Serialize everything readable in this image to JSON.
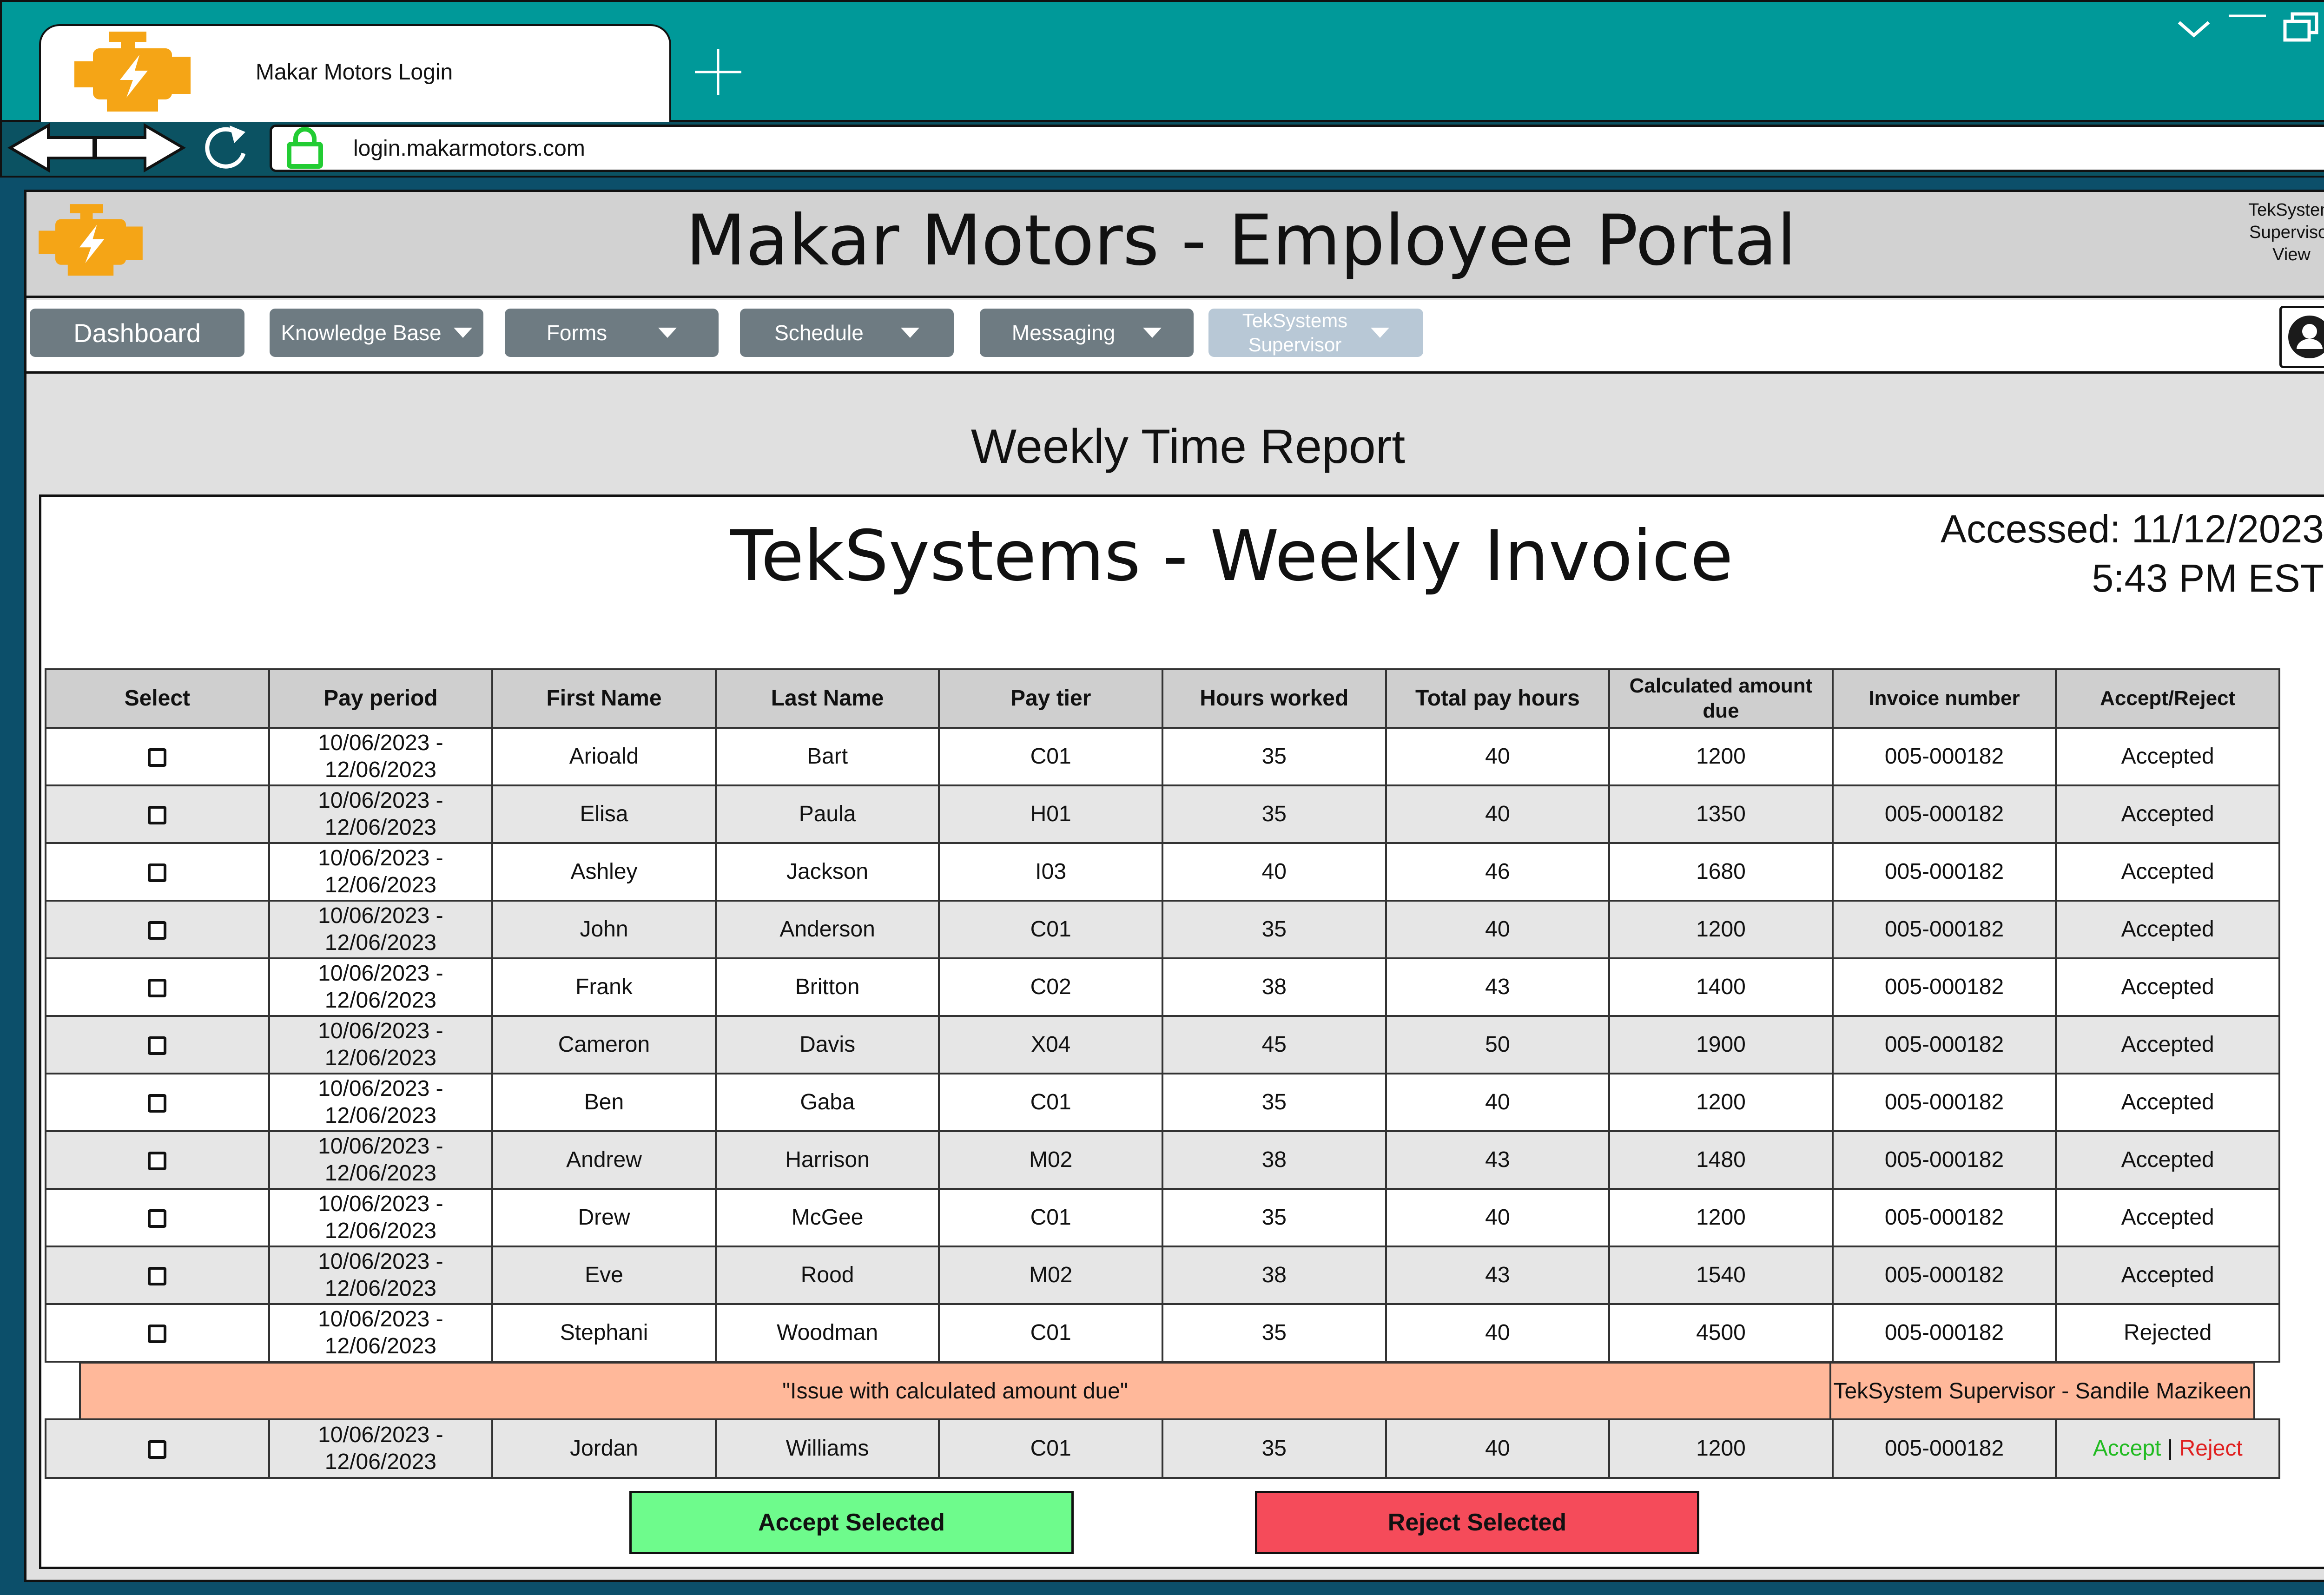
{
  "browser": {
    "tab_title": "Makar Motors Login",
    "url": "login.makarmotors.com"
  },
  "header": {
    "title": "Makar Motors - Employee Portal",
    "view_note": "TekSystem\nSupervisor\nView"
  },
  "menu": {
    "dashboard": "Dashboard",
    "knowledge_base": "Knowledge Base",
    "forms": "Forms",
    "schedule": "Schedule",
    "messaging": "Messaging",
    "supervisor": "TekSystems\nSupervisor"
  },
  "report": {
    "title": "Weekly Time Report",
    "invoice_title": "TekSystems - Weekly Invoice",
    "accessed_date": "Accessed: 11/12/2023",
    "accessed_time": "5:43 PM EST"
  },
  "table": {
    "headers": [
      "Select",
      "Pay period",
      "First Name",
      "Last Name",
      "Pay tier",
      "Hours worked",
      "Total pay hours",
      "Calculated amount due",
      "Invoice number",
      "Accept/Reject"
    ],
    "rows": [
      {
        "period": "10/06/2023 - 12/06/2023",
        "first": "Arioald",
        "last": "Bart",
        "tier": "C01",
        "hours": "35",
        "pay_hours": "40",
        "amount": "1200",
        "invoice": "005-000182",
        "status": "Accepted"
      },
      {
        "period": "10/06/2023 - 12/06/2023",
        "first": "Elisa",
        "last": "Paula",
        "tier": "H01",
        "hours": "35",
        "pay_hours": "40",
        "amount": "1350",
        "invoice": "005-000182",
        "status": "Accepted"
      },
      {
        "period": "10/06/2023 - 12/06/2023",
        "first": "Ashley",
        "last": "Jackson",
        "tier": "I03",
        "hours": "40",
        "pay_hours": "46",
        "amount": "1680",
        "invoice": "005-000182",
        "status": "Accepted"
      },
      {
        "period": "10/06/2023 - 12/06/2023",
        "first": "John",
        "last": "Anderson",
        "tier": "C01",
        "hours": "35",
        "pay_hours": "40",
        "amount": "1200",
        "invoice": "005-000182",
        "status": "Accepted"
      },
      {
        "period": "10/06/2023 - 12/06/2023",
        "first": "Frank",
        "last": "Britton",
        "tier": "C02",
        "hours": "38",
        "pay_hours": "43",
        "amount": "1400",
        "invoice": "005-000182",
        "status": "Accepted"
      },
      {
        "period": "10/06/2023 - 12/06/2023",
        "first": "Cameron",
        "last": "Davis",
        "tier": "X04",
        "hours": "45",
        "pay_hours": "50",
        "amount": "1900",
        "invoice": "005-000182",
        "status": "Accepted"
      },
      {
        "period": "10/06/2023 - 12/06/2023",
        "first": "Ben",
        "last": "Gaba",
        "tier": "C01",
        "hours": "35",
        "pay_hours": "40",
        "amount": "1200",
        "invoice": "005-000182",
        "status": "Accepted"
      },
      {
        "period": "10/06/2023 - 12/06/2023",
        "first": "Andrew",
        "last": "Harrison",
        "tier": "M02",
        "hours": "38",
        "pay_hours": "43",
        "amount": "1480",
        "invoice": "005-000182",
        "status": "Accepted"
      },
      {
        "period": "10/06/2023 - 12/06/2023",
        "first": "Drew",
        "last": "McGee",
        "tier": "C01",
        "hours": "35",
        "pay_hours": "40",
        "amount": "1200",
        "invoice": "005-000182",
        "status": "Accepted"
      },
      {
        "period": "10/06/2023 - 12/06/2023",
        "first": "Eve",
        "last": "Rood",
        "tier": "M02",
        "hours": "38",
        "pay_hours": "43",
        "amount": "1540",
        "invoice": "005-000182",
        "status": "Accepted"
      },
      {
        "period": "10/06/2023 - 12/06/2023",
        "first": "Stephani",
        "last": "Woodman",
        "tier": "C01",
        "hours": "35",
        "pay_hours": "40",
        "amount": "4500",
        "invoice": "005-000182",
        "status": "Rejected"
      }
    ],
    "comment": {
      "text": "\"Issue with calculated amount due\"",
      "author": "TekSystem Supervisor - Sandile Mazikeen"
    },
    "pending_row": {
      "period": "10/06/2023 - 12/06/2023",
      "first": "Jordan",
      "last": "Williams",
      "tier": "C01",
      "hours": "35",
      "pay_hours": "40",
      "amount": "1200",
      "invoice": "005-000182",
      "accept": "Accept",
      "separator": "|",
      "reject": "Reject"
    }
  },
  "actions": {
    "accept_selected": "Accept Selected",
    "reject_selected": "Reject Selected"
  },
  "colors": {
    "chrome_teal": "#009999",
    "accepted": "#22bb22",
    "rejected": "#e02020",
    "accept_button": "#6efb8c",
    "reject_button": "#f54b5a",
    "comment_row": "#ffb89a"
  },
  "icons": [
    "engine-logo-icon",
    "plus-icon",
    "chevron-down-icon",
    "minimize-icon",
    "restore-icon",
    "close-icon",
    "back-arrow-icon",
    "forward-arrow-icon",
    "reload-icon",
    "lock-icon",
    "user-profile-icon"
  ]
}
